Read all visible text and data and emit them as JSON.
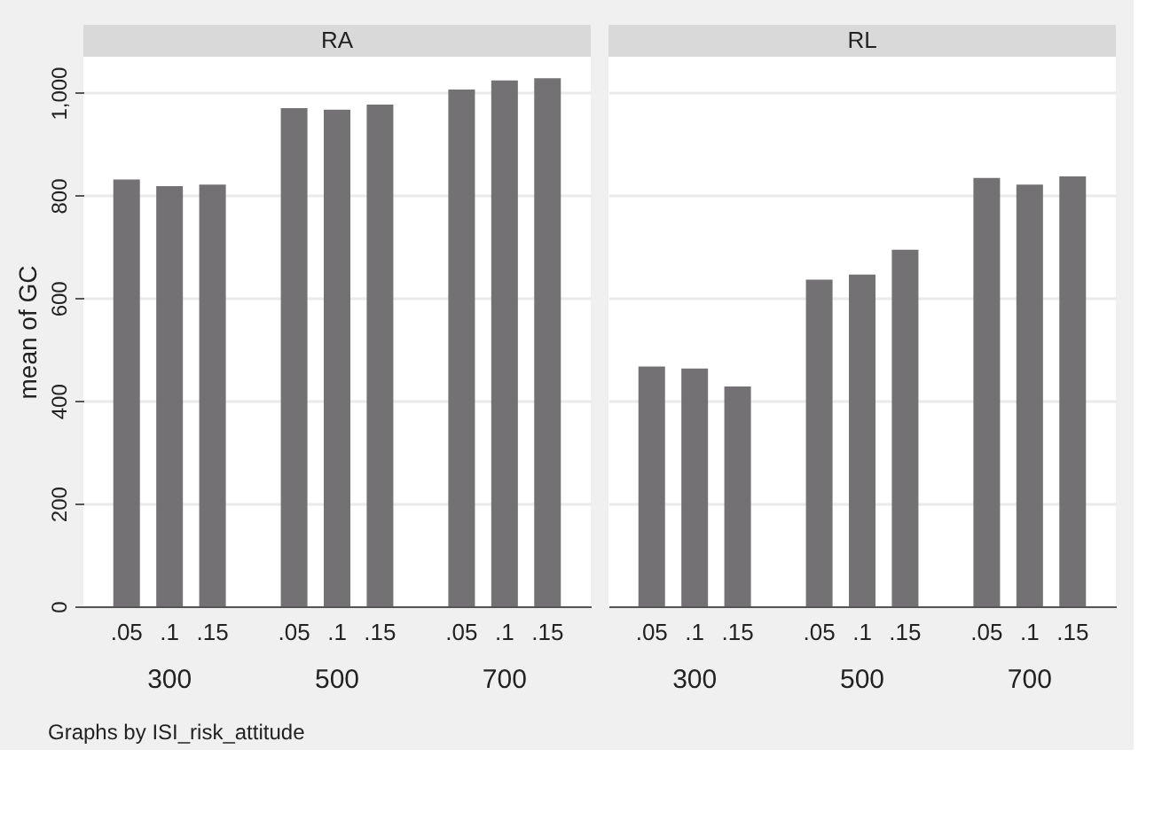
{
  "chart_data": [
    {
      "type": "bar",
      "title": "RA",
      "ylabel": "mean of GC",
      "categories": [
        ".05",
        ".1",
        ".15",
        ".05",
        ".1",
        ".15",
        ".05",
        ".1",
        ".15"
      ],
      "values": [
        831,
        818,
        821,
        970,
        967,
        977,
        1006,
        1024,
        1028
      ],
      "color": "#737173",
      "ylim": [
        0,
        1070
      ],
      "yticks": [
        0,
        200,
        400,
        600,
        800,
        {
          "value": 1000,
          "label": "1,000"
        }
      ],
      "grid": "y",
      "annotations": [
        "300",
        "500",
        "700",
        "Graphs by ISI_risk_attitude"
      ]
    },
    {
      "type": "bar",
      "title": "RL",
      "categories": [
        ".05",
        ".1",
        ".15",
        ".05",
        ".1",
        ".15",
        ".05",
        ".1",
        ".15"
      ],
      "values": [
        467,
        463,
        428,
        636,
        646,
        694,
        834,
        821,
        837
      ],
      "color": "#737173",
      "ylim": [
        0,
        1070
      ],
      "yticks": [
        0,
        200,
        400,
        600,
        800,
        1000
      ],
      "grid": "y",
      "tick_labels": "x",
      "annotations": [
        "300",
        "500",
        "700"
      ]
    }
  ]
}
